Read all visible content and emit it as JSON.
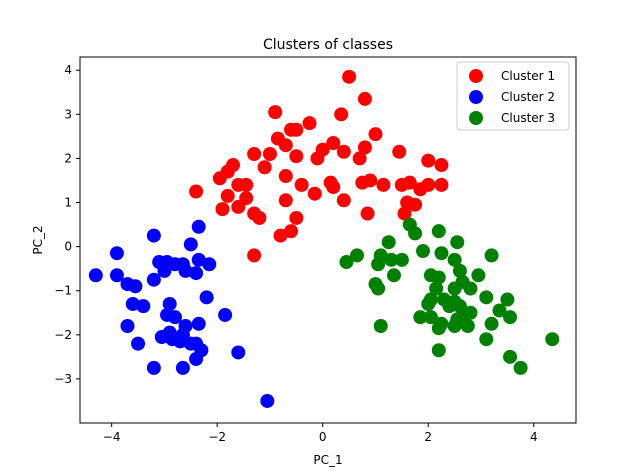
{
  "chart_data": {
    "type": "scatter",
    "title": "Clusters of classes",
    "xlabel": "PC_1",
    "ylabel": "PC_2",
    "xlim": [
      -4.6,
      4.8
    ],
    "ylim": [
      -4.0,
      4.3
    ],
    "xticks": [
      -4,
      -2,
      0,
      2,
      4
    ],
    "yticks": [
      -3,
      -2,
      -1,
      0,
      1,
      2,
      3,
      4
    ],
    "grid": false,
    "legend_position": "top-right",
    "series": [
      {
        "name": "Cluster 1",
        "color": "#ff0000",
        "points": [
          [
            0.5,
            3.85
          ],
          [
            0.8,
            3.35
          ],
          [
            -0.9,
            3.05
          ],
          [
            0.35,
            3.0
          ],
          [
            -0.5,
            2.65
          ],
          [
            -0.6,
            2.65
          ],
          [
            -0.25,
            2.8
          ],
          [
            -0.85,
            2.45
          ],
          [
            -0.7,
            2.3
          ],
          [
            0.0,
            2.2
          ],
          [
            0.2,
            2.35
          ],
          [
            1.0,
            2.55
          ],
          [
            -1.3,
            2.1
          ],
          [
            -1.0,
            2.1
          ],
          [
            -0.5,
            2.05
          ],
          [
            -0.1,
            2.0
          ],
          [
            0.4,
            2.15
          ],
          [
            0.8,
            2.25
          ],
          [
            0.7,
            2.0
          ],
          [
            1.45,
            2.15
          ],
          [
            2.0,
            1.95
          ],
          [
            2.25,
            1.85
          ],
          [
            -1.7,
            1.85
          ],
          [
            -1.8,
            1.7
          ],
          [
            -1.1,
            1.8
          ],
          [
            -1.95,
            1.55
          ],
          [
            -1.6,
            1.4
          ],
          [
            -1.45,
            1.4
          ],
          [
            -0.7,
            1.6
          ],
          [
            -0.4,
            1.4
          ],
          [
            0.15,
            1.45
          ],
          [
            0.75,
            1.45
          ],
          [
            0.9,
            1.5
          ],
          [
            1.15,
            1.4
          ],
          [
            1.5,
            1.4
          ],
          [
            1.65,
            1.45
          ],
          [
            2.0,
            1.4
          ],
          [
            2.25,
            1.4
          ],
          [
            1.85,
            1.3
          ],
          [
            -2.4,
            1.25
          ],
          [
            -1.8,
            1.15
          ],
          [
            -1.45,
            1.1
          ],
          [
            -0.15,
            1.2
          ],
          [
            0.2,
            1.35
          ],
          [
            -0.7,
            1.05
          ],
          [
            0.4,
            1.05
          ],
          [
            1.6,
            1.0
          ],
          [
            1.75,
            0.95
          ],
          [
            -1.9,
            0.85
          ],
          [
            -1.6,
            0.9
          ],
          [
            -1.3,
            0.75
          ],
          [
            -1.2,
            0.65
          ],
          [
            -0.5,
            0.65
          ],
          [
            0.85,
            0.75
          ],
          [
            1.55,
            0.75
          ],
          [
            -0.8,
            0.25
          ],
          [
            -0.6,
            0.35
          ],
          [
            -1.3,
            -0.2
          ]
        ]
      },
      {
        "name": "Cluster 2",
        "color": "#0000ff",
        "points": [
          [
            -2.35,
            0.45
          ],
          [
            -3.2,
            0.25
          ],
          [
            -2.5,
            0.05
          ],
          [
            -3.9,
            -0.15
          ],
          [
            -4.3,
            -0.65
          ],
          [
            -3.9,
            -0.65
          ],
          [
            -3.1,
            -0.35
          ],
          [
            -2.95,
            -0.35
          ],
          [
            -2.8,
            -0.4
          ],
          [
            -2.65,
            -0.4
          ],
          [
            -2.35,
            -0.3
          ],
          [
            -2.15,
            -0.4
          ],
          [
            -3.0,
            -0.55
          ],
          [
            -2.6,
            -0.55
          ],
          [
            -2.4,
            -0.6
          ],
          [
            -3.2,
            -0.75
          ],
          [
            -3.7,
            -0.85
          ],
          [
            -3.55,
            -0.9
          ],
          [
            -3.6,
            -1.3
          ],
          [
            -3.4,
            -1.35
          ],
          [
            -2.2,
            -1.15
          ],
          [
            -2.9,
            -1.3
          ],
          [
            -2.95,
            -1.55
          ],
          [
            -2.8,
            -1.6
          ],
          [
            -1.85,
            -1.55
          ],
          [
            -3.7,
            -1.8
          ],
          [
            -2.6,
            -1.8
          ],
          [
            -2.35,
            -1.75
          ],
          [
            -2.9,
            -1.95
          ],
          [
            -3.05,
            -2.05
          ],
          [
            -2.85,
            -2.1
          ],
          [
            -2.65,
            -2.0
          ],
          [
            -2.5,
            -2.2
          ],
          [
            -2.4,
            -2.2
          ],
          [
            -2.3,
            -2.35
          ],
          [
            -2.7,
            -2.15
          ],
          [
            -3.5,
            -2.2
          ],
          [
            -1.6,
            -2.4
          ],
          [
            -2.4,
            -2.55
          ],
          [
            -3.2,
            -2.75
          ],
          [
            -2.65,
            -2.75
          ],
          [
            -1.05,
            -3.5
          ]
        ]
      },
      {
        "name": "Cluster 3",
        "color": "#008000",
        "points": [
          [
            1.65,
            0.5
          ],
          [
            1.75,
            0.3
          ],
          [
            2.2,
            0.35
          ],
          [
            1.25,
            0.1
          ],
          [
            2.55,
            0.1
          ],
          [
            0.65,
            -0.2
          ],
          [
            1.1,
            -0.2
          ],
          [
            1.9,
            -0.1
          ],
          [
            2.25,
            -0.15
          ],
          [
            3.2,
            -0.2
          ],
          [
            0.45,
            -0.35
          ],
          [
            1.05,
            -0.4
          ],
          [
            1.3,
            -0.3
          ],
          [
            1.5,
            -0.3
          ],
          [
            2.5,
            -0.3
          ],
          [
            2.6,
            -0.55
          ],
          [
            1.35,
            -0.65
          ],
          [
            2.05,
            -0.65
          ],
          [
            2.2,
            -0.7
          ],
          [
            2.95,
            -0.65
          ],
          [
            2.65,
            -0.8
          ],
          [
            1.0,
            -0.85
          ],
          [
            1.05,
            -0.95
          ],
          [
            2.15,
            -0.95
          ],
          [
            2.5,
            -0.95
          ],
          [
            2.8,
            -0.95
          ],
          [
            2.05,
            -1.2
          ],
          [
            2.3,
            -1.2
          ],
          [
            2.5,
            -1.25
          ],
          [
            2.6,
            -1.35
          ],
          [
            3.1,
            -1.15
          ],
          [
            3.5,
            -1.2
          ],
          [
            2.0,
            -1.3
          ],
          [
            2.4,
            -1.35
          ],
          [
            3.35,
            -1.45
          ],
          [
            2.7,
            -1.55
          ],
          [
            1.85,
            -1.6
          ],
          [
            2.05,
            -1.6
          ],
          [
            2.55,
            -1.65
          ],
          [
            2.8,
            -1.5
          ],
          [
            3.55,
            -1.6
          ],
          [
            1.1,
            -1.8
          ],
          [
            2.25,
            -1.75
          ],
          [
            2.5,
            -1.8
          ],
          [
            2.75,
            -1.8
          ],
          [
            2.2,
            -1.85
          ],
          [
            3.2,
            -1.75
          ],
          [
            3.1,
            -2.1
          ],
          [
            4.35,
            -2.1
          ],
          [
            2.2,
            -2.35
          ],
          [
            3.55,
            -2.5
          ],
          [
            3.75,
            -2.75
          ]
        ]
      }
    ]
  }
}
